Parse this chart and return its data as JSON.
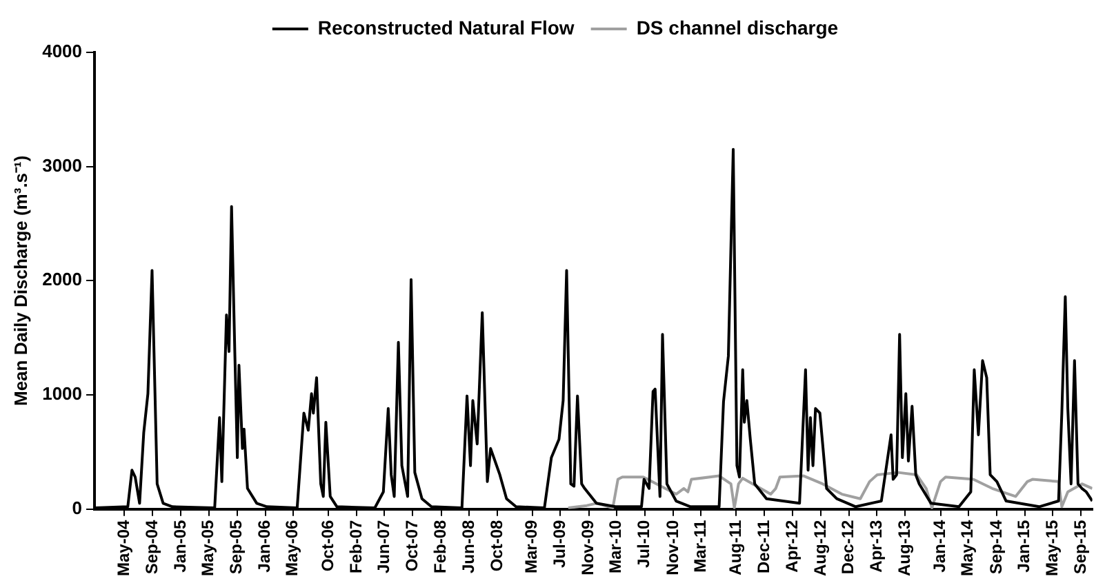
{
  "chart_data": {
    "type": "line",
    "ylabel": "Mean Daily Discharge (m³.s⁻¹)",
    "legend": "top",
    "grid": false,
    "marker": "none",
    "line_style": "solid",
    "xlim": [
      "2003-12-24",
      "2015-10-20"
    ],
    "ylim": [
      0,
      4000
    ],
    "yticks": [
      0,
      1000,
      2000,
      3000,
      4000
    ],
    "xticks": [
      {
        "value": "2004-05",
        "label": "May-04"
      },
      {
        "value": "2004-09",
        "label": "Sep-04"
      },
      {
        "value": "2005-01",
        "label": "Jan-05"
      },
      {
        "value": "2005-05",
        "label": "May-05"
      },
      {
        "value": "2005-09",
        "label": "Sep-05"
      },
      {
        "value": "2006-01",
        "label": "Jan-06"
      },
      {
        "value": "2006-05",
        "label": "May-06"
      },
      {
        "value": "2006-10",
        "label": "Oct-06"
      },
      {
        "value": "2007-02",
        "label": "Feb-07"
      },
      {
        "value": "2007-06",
        "label": "Jun-07"
      },
      {
        "value": "2007-10",
        "label": "Oct-07"
      },
      {
        "value": "2008-02",
        "label": "Feb-08"
      },
      {
        "value": "2008-06",
        "label": "Jun-08"
      },
      {
        "value": "2008-10",
        "label": "Oct-08"
      },
      {
        "value": "2009-03",
        "label": "Mar-09"
      },
      {
        "value": "2009-07",
        "label": "Jul-09"
      },
      {
        "value": "2009-11",
        "label": "Nov-09"
      },
      {
        "value": "2010-03",
        "label": "Mar-10"
      },
      {
        "value": "2010-07",
        "label": "Jul-10"
      },
      {
        "value": "2010-11",
        "label": "Nov-10"
      },
      {
        "value": "2011-03",
        "label": "Mar-11"
      },
      {
        "value": "2011-08",
        "label": "Aug-11"
      },
      {
        "value": "2011-12",
        "label": "Dec-11"
      },
      {
        "value": "2012-04",
        "label": "Apr-12"
      },
      {
        "value": "2012-08",
        "label": "Aug-12"
      },
      {
        "value": "2012-12",
        "label": "Dec-12"
      },
      {
        "value": "2013-04",
        "label": "Apr-13"
      },
      {
        "value": "2013-08",
        "label": "Aug-13"
      },
      {
        "value": "2014-01",
        "label": "Jan-14"
      },
      {
        "value": "2014-05",
        "label": "May-14"
      },
      {
        "value": "2014-09",
        "label": "Sep-14"
      },
      {
        "value": "2015-01",
        "label": "Jan-15"
      },
      {
        "value": "2015-05",
        "label": "May-15"
      },
      {
        "value": "2015-09",
        "label": "Sep-15"
      }
    ],
    "series": [
      {
        "name": "Reconstructed Natural Flow",
        "color": "#000000",
        "x": [
          "2003-12-24",
          "2004-05-16",
          "2004-06-03",
          "2004-06-17",
          "2004-07-06",
          "2004-07-24",
          "2004-08-11",
          "2004-08-29",
          "2004-09-20",
          "2004-10-16",
          "2004-11-25",
          "2005-05-27",
          "2005-06-17",
          "2005-06-27",
          "2005-07-17",
          "2005-07-28",
          "2005-08-08",
          "2005-08-22",
          "2005-09-02",
          "2005-09-09",
          "2005-09-24",
          "2005-10-01",
          "2005-10-16",
          "2005-11-25",
          "2006-01-08",
          "2006-05-19",
          "2006-06-17",
          "2006-07-06",
          "2006-07-20",
          "2006-07-28",
          "2006-08-11",
          "2006-08-29",
          "2006-09-09",
          "2006-09-20",
          "2006-10-09",
          "2006-11-07",
          "2007-04-20",
          "2007-05-27",
          "2007-06-17",
          "2007-06-30",
          "2007-07-13",
          "2007-07-31",
          "2007-08-15",
          "2007-09-09",
          "2007-09-24",
          "2007-10-10",
          "2007-11-10",
          "2007-12-21",
          "2008-05-01",
          "2008-05-23",
          "2008-06-07",
          "2008-06-17",
          "2008-07-06",
          "2008-07-28",
          "2008-08-19",
          "2008-09-02",
          "2008-09-16",
          "2008-10-12",
          "2008-11-10",
          "2008-12-21",
          "2009-04-23",
          "2009-05-23",
          "2009-06-25",
          "2009-07-13",
          "2009-07-28",
          "2009-08-15",
          "2009-08-29",
          "2009-09-13",
          "2009-10-01",
          "2009-10-14",
          "2009-12-04",
          "2010-02-24",
          "2010-06-17",
          "2010-06-28",
          "2010-07-20",
          "2010-08-06",
          "2010-08-15",
          "2010-09-05",
          "2010-09-16",
          "2010-10-05",
          "2010-11-14",
          "2011-01-15",
          "2011-05-19",
          "2011-06-07",
          "2011-06-28",
          "2011-07-19",
          "2011-08-04",
          "2011-08-15",
          "2011-08-29",
          "2011-09-05",
          "2011-09-16",
          "2011-10-01",
          "2011-10-20",
          "2011-12-10",
          "2012-05-01",
          "2012-05-27",
          "2012-06-07",
          "2012-06-17",
          "2012-06-28",
          "2012-07-09",
          "2012-07-28",
          "2012-08-09",
          "2012-08-26",
          "2012-10-09",
          "2012-12-30",
          "2013-04-20",
          "2013-06-01",
          "2013-06-10",
          "2013-06-25",
          "2013-07-08",
          "2013-07-20",
          "2013-08-04",
          "2013-08-15",
          "2013-08-31",
          "2013-09-16",
          "2013-10-01",
          "2013-11-21",
          "2014-03-22",
          "2014-05-12",
          "2014-05-27",
          "2014-06-14",
          "2014-07-02",
          "2014-07-20",
          "2014-08-04",
          "2014-09-02",
          "2014-10-12",
          "2015-03-04",
          "2015-05-27",
          "2015-06-10",
          "2015-06-25",
          "2015-07-06",
          "2015-07-20",
          "2015-08-04",
          "2015-08-19",
          "2015-09-05",
          "2015-09-24",
          "2015-10-20"
        ],
        "values": [
          10,
          20,
          340,
          280,
          50,
          670,
          1010,
          2090,
          220,
          50,
          20,
          10,
          800,
          240,
          1700,
          1380,
          2650,
          1380,
          450,
          1260,
          530,
          700,
          180,
          50,
          20,
          10,
          840,
          690,
          1010,
          840,
          1150,
          220,
          110,
          760,
          110,
          20,
          10,
          150,
          880,
          300,
          110,
          1460,
          380,
          110,
          2010,
          320,
          90,
          20,
          10,
          990,
          380,
          950,
          570,
          1720,
          240,
          530,
          450,
          300,
          90,
          20,
          10,
          450,
          610,
          950,
          2090,
          220,
          200,
          990,
          220,
          180,
          50,
          20,
          20,
          260,
          180,
          1030,
          1050,
          110,
          1530,
          220,
          70,
          20,
          20,
          940,
          1340,
          3150,
          380,
          280,
          1220,
          760,
          950,
          610,
          220,
          90,
          50,
          1220,
          340,
          800,
          380,
          880,
          840,
          570,
          180,
          90,
          20,
          70,
          650,
          260,
          300,
          1530,
          450,
          1010,
          420,
          900,
          300,
          220,
          50,
          20,
          150,
          1220,
          650,
          1300,
          1150,
          300,
          240,
          70,
          20,
          70,
          840,
          1860,
          880,
          220,
          1300,
          220,
          180,
          150,
          70
        ]
      },
      {
        "name": "DS channel discharge",
        "color": "#a0a0a0",
        "x": [
          "2009-08-04",
          "2009-10-23",
          "2009-12-04",
          "2010-02-13",
          "2010-03-07",
          "2010-03-26",
          "2010-06-25",
          "2010-11-14",
          "2010-12-17",
          "2011-01-04",
          "2011-01-19",
          "2011-05-19",
          "2011-07-09",
          "2011-07-24",
          "2011-08-11",
          "2011-08-29",
          "2011-12-28",
          "2012-01-19",
          "2012-02-06",
          "2012-05-19",
          "2012-08-09",
          "2012-10-31",
          "2013-01-19",
          "2013-02-28",
          "2013-04-02",
          "2013-07-02",
          "2013-09-20",
          "2013-10-31",
          "2013-11-25",
          "2014-01-01",
          "2014-01-23",
          "2014-05-23",
          "2014-08-13",
          "2014-11-22",
          "2015-01-12",
          "2015-02-03",
          "2015-05-27",
          "2015-06-10",
          "2015-07-06",
          "2015-09-05",
          "2015-10-20"
        ],
        "values": [
          10,
          30,
          50,
          10,
          260,
          280,
          280,
          130,
          180,
          150,
          260,
          290,
          220,
          10,
          220,
          270,
          130,
          180,
          280,
          290,
          220,
          130,
          90,
          240,
          300,
          320,
          300,
          180,
          10,
          240,
          280,
          260,
          180,
          110,
          240,
          260,
          240,
          20,
          150,
          220,
          180
        ]
      }
    ]
  }
}
